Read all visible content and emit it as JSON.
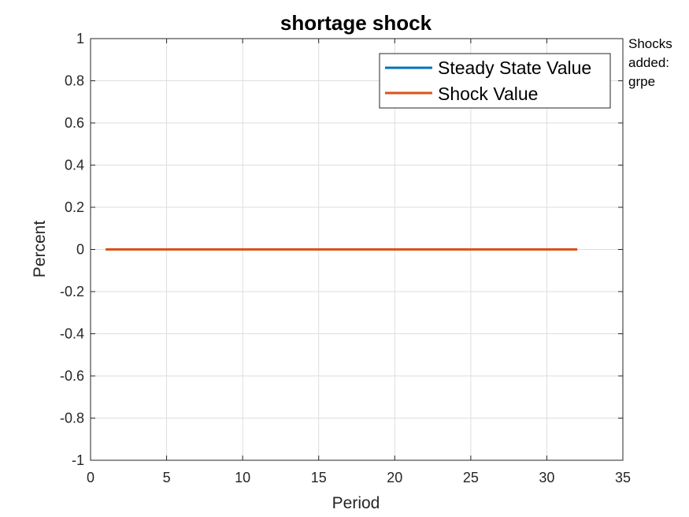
{
  "chart_data": {
    "type": "line",
    "title": "shortage shock",
    "xlabel": "Period",
    "ylabel": "Percent",
    "xlim": [
      0,
      35
    ],
    "ylim": [
      -1,
      1
    ],
    "xticks": [
      0,
      5,
      10,
      15,
      20,
      25,
      30,
      35
    ],
    "yticks": [
      -1,
      -0.8,
      -0.6,
      -0.4,
      -0.2,
      0,
      0.2,
      0.4,
      0.6,
      0.8,
      1
    ],
    "grid": true,
    "legend_position": "top-right",
    "series": [
      {
        "name": "Steady State Value",
        "color": "#0072BD",
        "x": [
          1,
          2,
          3,
          4,
          5,
          6,
          7,
          8,
          9,
          10,
          11,
          12,
          13,
          14,
          15,
          16,
          17,
          18,
          19,
          20,
          21,
          22,
          23,
          24,
          25,
          26,
          27,
          28,
          29,
          30,
          31,
          32
        ],
        "y": [
          0,
          0,
          0,
          0,
          0,
          0,
          0,
          0,
          0,
          0,
          0,
          0,
          0,
          0,
          0,
          0,
          0,
          0,
          0,
          0,
          0,
          0,
          0,
          0,
          0,
          0,
          0,
          0,
          0,
          0,
          0,
          0
        ]
      },
      {
        "name": "Shock Value",
        "color": "#D95319",
        "x": [
          1,
          2,
          3,
          4,
          5,
          6,
          7,
          8,
          9,
          10,
          11,
          12,
          13,
          14,
          15,
          16,
          17,
          18,
          19,
          20,
          21,
          22,
          23,
          24,
          25,
          26,
          27,
          28,
          29,
          30,
          31,
          32
        ],
        "y": [
          0,
          0,
          0,
          0,
          0,
          0,
          0,
          0,
          0,
          0,
          0,
          0,
          0,
          0,
          0,
          0,
          0,
          0,
          0,
          0,
          0,
          0,
          0,
          0,
          0,
          0,
          0,
          0,
          0,
          0,
          0,
          0
        ]
      }
    ],
    "annotation": [
      "Shocks",
      "added:",
      "grpe"
    ]
  }
}
